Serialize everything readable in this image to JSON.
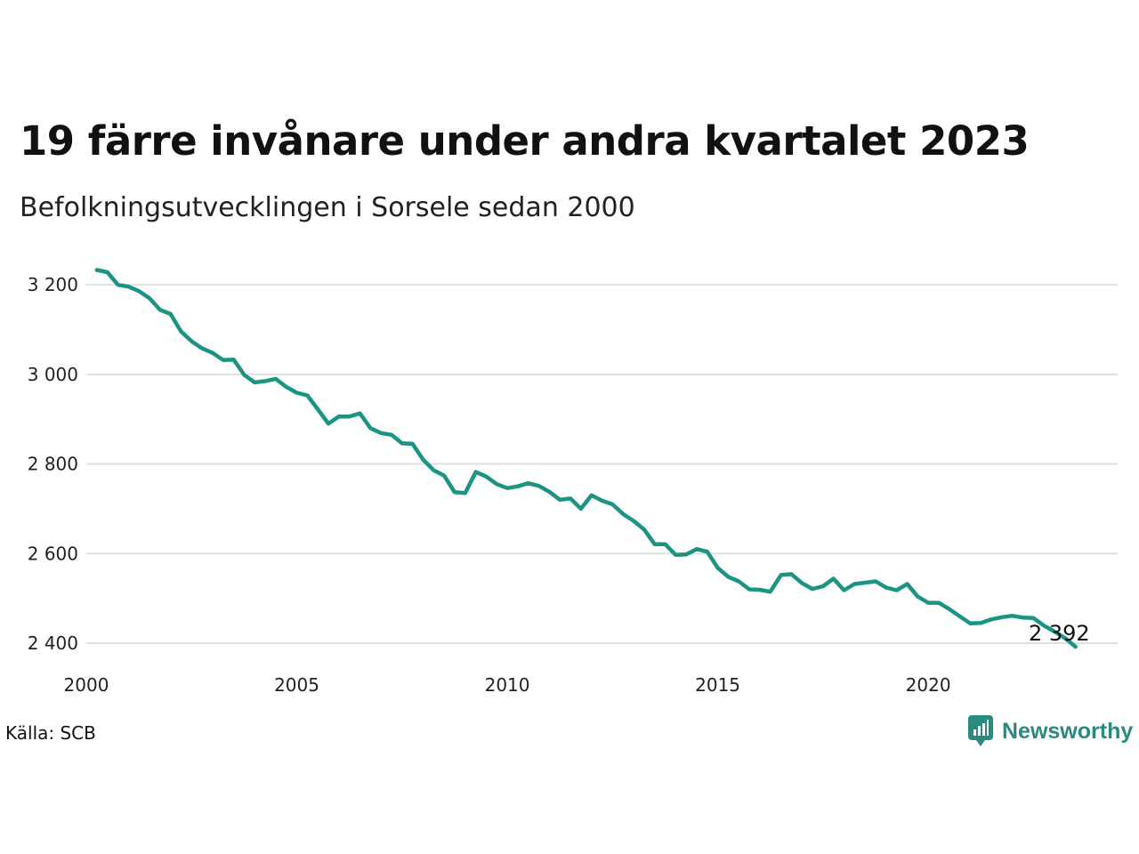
{
  "header": {
    "title": "19 färre invånare under andra kvartalet 2023",
    "subtitle": "Befolkningsutvecklingen i Sorsele sedan 2000"
  },
  "footer": {
    "source": "Källa: SCB",
    "brand": "Newsworthy",
    "brand_icon": "newsworthy-logo-icon"
  },
  "colors": {
    "line": "#1b9484",
    "grid": "#e0e0e0",
    "brand": "#2a8a80"
  },
  "chart_data": {
    "type": "line",
    "title": "19 färre invånare under andra kvartalet 2023",
    "subtitle": "Befolkningsutvecklingen i Sorsele sedan 2000",
    "xlabel": "",
    "ylabel": "",
    "xlim": [
      2000,
      2024.5
    ],
    "ylim": [
      2390,
      3240
    ],
    "grid": "horizontal",
    "x_ticks": [
      {
        "value": 2000,
        "label": "2000"
      },
      {
        "value": 2005,
        "label": "2005"
      },
      {
        "value": 2010,
        "label": "2010"
      },
      {
        "value": 2015,
        "label": "2015"
      },
      {
        "value": 2020,
        "label": "2020"
      }
    ],
    "y_ticks": [
      {
        "value": 2400,
        "label": "2 400"
      },
      {
        "value": 2600,
        "label": "2 600"
      },
      {
        "value": 2800,
        "label": "2 800"
      },
      {
        "value": 3000,
        "label": "3 000"
      },
      {
        "value": 3200,
        "label": "3 200"
      }
    ],
    "end_label": "2 392",
    "series": [
      {
        "values": [
          3233,
          3228,
          3200,
          3196,
          3186,
          3170,
          3144,
          3135,
          3096,
          3074,
          3058,
          3048,
          3032,
          3033,
          2999,
          2982,
          2985,
          2990,
          2972,
          2959,
          2953,
          2922,
          2890,
          2906,
          2906,
          2913,
          2880,
          2869,
          2865,
          2846,
          2845,
          2810,
          2786,
          2774,
          2737,
          2735,
          2782,
          2772,
          2755,
          2746,
          2750,
          2757,
          2751,
          2738,
          2720,
          2723,
          2700,
          2730,
          2718,
          2710,
          2688,
          2673,
          2654,
          2621,
          2621,
          2597,
          2598,
          2610,
          2604,
          2568,
          2548,
          2538,
          2520,
          2519,
          2515,
          2552,
          2554,
          2534,
          2521,
          2527,
          2544,
          2518,
          2532,
          2535,
          2538,
          2524,
          2518,
          2532,
          2504,
          2490,
          2490,
          2476,
          2460,
          2444,
          2445,
          2453,
          2458,
          2461,
          2457,
          2456,
          2439,
          2426,
          2411,
          2392
        ]
      }
    ]
  }
}
